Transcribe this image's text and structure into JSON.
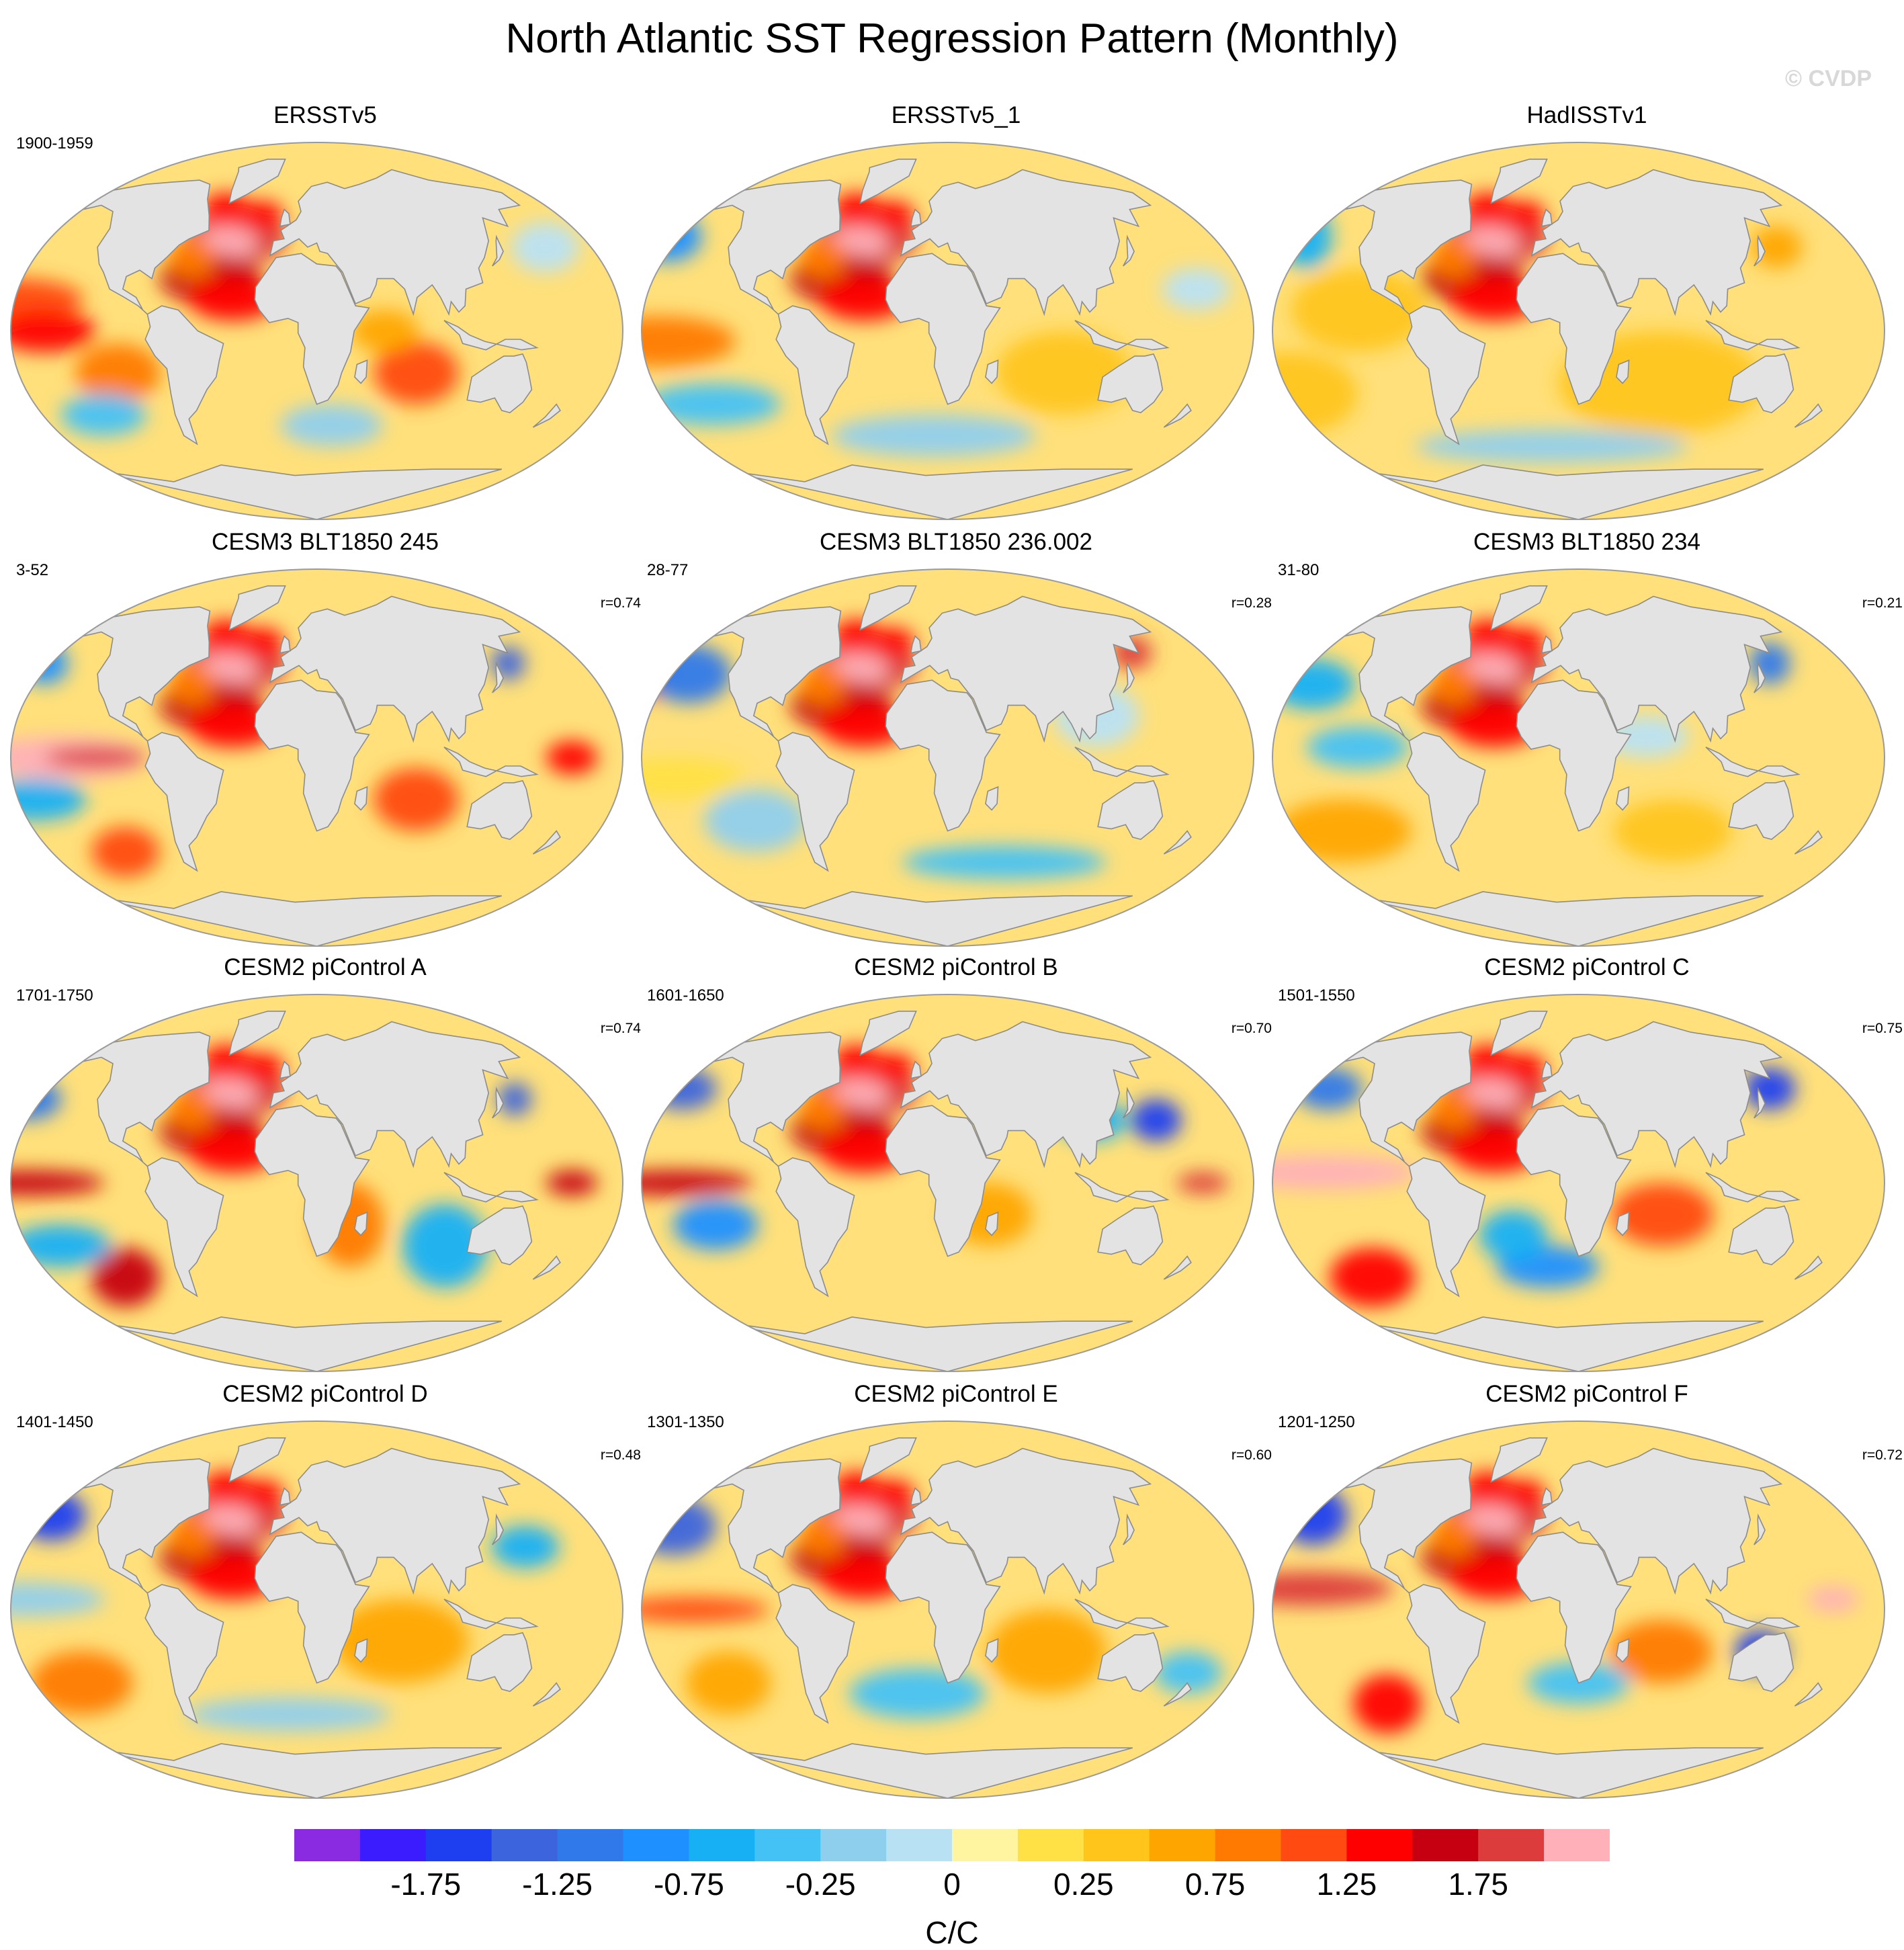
{
  "title": "North Atlantic SST Regression Pattern (Monthly)",
  "watermark": "© CVDP",
  "colors": {
    "ocean_base": "#ffe07a",
    "land": "#e3e3e3",
    "coast": "#8c8c8c"
  },
  "colorbar": {
    "units": "C/C",
    "colors": [
      "#8a2be2",
      "#3b1cff",
      "#1e3ff0",
      "#3c64dc",
      "#2f79ea",
      "#1e90ff",
      "#18b0f5",
      "#45c2f5",
      "#8fcfee",
      "#b9e1f4",
      "#fff5a0",
      "#ffe045",
      "#ffc51a",
      "#ffa500",
      "#ff7a00",
      "#ff4a12",
      "#ff0000",
      "#c60010",
      "#dc3c3c",
      "#ffb0b8"
    ],
    "labels": [
      "-1.75",
      "-1.25",
      "-0.75",
      "-0.25",
      "0",
      "0.25",
      "0.75",
      "1.25",
      "1.75"
    ]
  },
  "panels": [
    {
      "title": "ERSSTv5",
      "period": "1900-1959",
      "r": "",
      "pattern": "obs1"
    },
    {
      "title": "ERSSTv5_1",
      "period": "",
      "r": "",
      "pattern": "obs2"
    },
    {
      "title": "HadISSTv1",
      "period": "",
      "r": "",
      "pattern": "obs3"
    },
    {
      "title": "CESM3 BLT1850 245",
      "period": "3-52",
      "r": "r=0.74",
      "pattern": "m1"
    },
    {
      "title": "CESM3 BLT1850 236.002",
      "period": "28-77",
      "r": "r=0.28",
      "pattern": "m2"
    },
    {
      "title": "CESM3 BLT1850 234",
      "period": "31-80",
      "r": "r=0.21",
      "pattern": "m3"
    },
    {
      "title": "CESM2 piControl A",
      "period": "1701-1750",
      "r": "r=0.74",
      "pattern": "a"
    },
    {
      "title": "CESM2 piControl B",
      "period": "1601-1650",
      "r": "r=0.70",
      "pattern": "b"
    },
    {
      "title": "CESM2 piControl C",
      "period": "1501-1550",
      "r": "r=0.75",
      "pattern": "c"
    },
    {
      "title": "CESM2 piControl D",
      "period": "1401-1450",
      "r": "r=0.48",
      "pattern": "d"
    },
    {
      "title": "CESM2 piControl E",
      "period": "1301-1350",
      "r": "r=0.60",
      "pattern": "e"
    },
    {
      "title": "CESM2 piControl F",
      "period": "1201-1250",
      "r": "r=0.72",
      "pattern": "f"
    }
  ]
}
